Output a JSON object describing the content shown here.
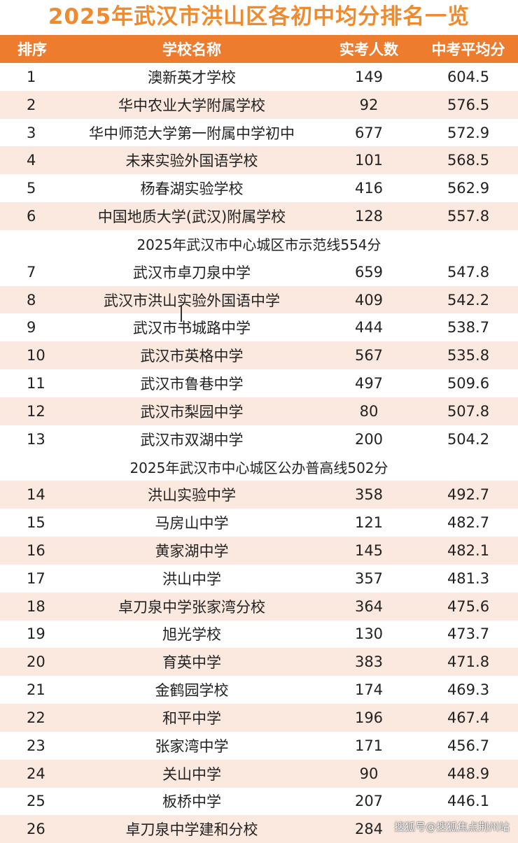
{
  "title": "2025年武汉市洪山区各初中均分排名一览",
  "headers": {
    "rank": "排序",
    "school": "学校名称",
    "count": "实考人数",
    "avg": "中考平均分"
  },
  "colors": {
    "title": "#f08a2e",
    "header_bg": "#ee7c2f",
    "row_shade": "#fbe8de"
  },
  "rows": [
    {
      "type": "data",
      "rank": "1",
      "school": "澳新英才学校",
      "count": "149",
      "avg": "604.5"
    },
    {
      "type": "data",
      "rank": "2",
      "school": "华中农业大学附属学校",
      "count": "92",
      "avg": "576.5"
    },
    {
      "type": "data",
      "rank": "3",
      "school": "华中师范大学第一附属中学初中",
      "count": "677",
      "avg": "572.9"
    },
    {
      "type": "data",
      "rank": "4",
      "school": "未来实验外国语学校",
      "count": "101",
      "avg": "568.5"
    },
    {
      "type": "data",
      "rank": "5",
      "school": "杨春湖实验学校",
      "count": "416",
      "avg": "562.9"
    },
    {
      "type": "data",
      "rank": "6",
      "school": "中国地质大学(武汉)附属学校",
      "count": "128",
      "avg": "557.8"
    },
    {
      "type": "divider",
      "text": "2025年武汉市中心城区市示范线554分"
    },
    {
      "type": "data",
      "rank": "7",
      "school": "武汉市卓刀泉中学",
      "count": "659",
      "avg": "547.8"
    },
    {
      "type": "data",
      "rank": "8",
      "school": "武汉市洪山实验外国语中学",
      "count": "409",
      "avg": "542.2"
    },
    {
      "type": "data",
      "rank": "9",
      "school": "武汉市书城路中学",
      "count": "444",
      "avg": "538.7"
    },
    {
      "type": "data",
      "rank": "10",
      "school": "武汉市英格中学",
      "count": "567",
      "avg": "535.8"
    },
    {
      "type": "data",
      "rank": "11",
      "school": "武汉市鲁巷中学",
      "count": "497",
      "avg": "509.6"
    },
    {
      "type": "data",
      "rank": "12",
      "school": "武汉市梨园中学",
      "count": "80",
      "avg": "507.8"
    },
    {
      "type": "data",
      "rank": "13",
      "school": "武汉市双湖中学",
      "count": "200",
      "avg": "504.2"
    },
    {
      "type": "divider",
      "text": "2025年武汉市中心城区公办普高线502分"
    },
    {
      "type": "data",
      "rank": "14",
      "school": "洪山实验中学",
      "count": "358",
      "avg": "492.7"
    },
    {
      "type": "data",
      "rank": "15",
      "school": "马房山中学",
      "count": "121",
      "avg": "482.7"
    },
    {
      "type": "data",
      "rank": "16",
      "school": "黄家湖中学",
      "count": "145",
      "avg": "482.1"
    },
    {
      "type": "data",
      "rank": "17",
      "school": "洪山中学",
      "count": "357",
      "avg": "481.3"
    },
    {
      "type": "data",
      "rank": "18",
      "school": "卓刀泉中学张家湾分校",
      "count": "364",
      "avg": "475.6"
    },
    {
      "type": "data",
      "rank": "19",
      "school": "旭光学校",
      "count": "130",
      "avg": "473.7"
    },
    {
      "type": "data",
      "rank": "20",
      "school": "育英中学",
      "count": "383",
      "avg": "471.8"
    },
    {
      "type": "data",
      "rank": "21",
      "school": "金鹤园学校",
      "count": "174",
      "avg": "469.3"
    },
    {
      "type": "data",
      "rank": "22",
      "school": "和平中学",
      "count": "196",
      "avg": "467.4"
    },
    {
      "type": "data",
      "rank": "23",
      "school": "张家湾中学",
      "count": "171",
      "avg": "456.7"
    },
    {
      "type": "data",
      "rank": "24",
      "school": "关山中学",
      "count": "90",
      "avg": "448.9"
    },
    {
      "type": "data",
      "rank": "25",
      "school": "板桥中学",
      "count": "207",
      "avg": "446.1"
    },
    {
      "type": "data",
      "rank": "26",
      "school": "卓刀泉中学建和分校",
      "count": "284",
      "avg": ""
    }
  ],
  "watermark": "搜狐号@搜狐焦点荆州站"
}
